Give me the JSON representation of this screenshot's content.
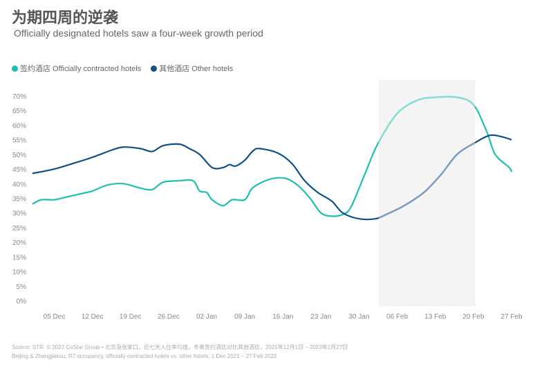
{
  "title": "为期四周的逆袭",
  "subtitle": "Officially designated hotels saw a four-week growth period",
  "source_line1": "Source: STR. © 2022 CoStar Group • 北京及张家口，近七天入住率均值，冬奥签约酒店对比其他酒店，2021年12月1日 – 2022年2月27日",
  "source_line2": "Beijing & Zhangjiakou, R7 occupancy, officially contracted hotels vs. other hotels, 1 Dec 2021 – 27 Feb 2022",
  "chart_data": {
    "type": "line",
    "title": "为期四周的逆袭",
    "xlabel": "",
    "ylabel": "",
    "ylim": [
      0,
      70
    ],
    "yticks": [
      "0%",
      "5%",
      "10%",
      "15%",
      "20%",
      "25%",
      "30%",
      "35%",
      "40%",
      "45%",
      "50%",
      "55%",
      "60%",
      "65%",
      "70%"
    ],
    "xticks": [
      {
        "day": 4,
        "label": "05 Dec"
      },
      {
        "day": 11,
        "label": "12 Dec"
      },
      {
        "day": 18,
        "label": "19 Dec"
      },
      {
        "day": 25,
        "label": "26 Dec"
      },
      {
        "day": 32,
        "label": "02 Jan"
      },
      {
        "day": 39,
        "label": "09 Jan"
      },
      {
        "day": 46,
        "label": "16 Jan"
      },
      {
        "day": 53,
        "label": "23 Jan"
      },
      {
        "day": 60,
        "label": "30 Jan"
      },
      {
        "day": 67,
        "label": "06 Feb"
      },
      {
        "day": 74,
        "label": "13 Feb"
      },
      {
        "day": 81,
        "label": "20 Feb"
      },
      {
        "day": 88,
        "label": "27 Feb"
      }
    ],
    "highlight_days": [
      63.6,
      81.3
    ],
    "series": [
      {
        "name": "签约酒店 Officially contracted hotels",
        "color": "#1DBFAF",
        "highlight_color": "#86DCD2",
        "x": [
          0,
          1.6,
          4,
          6.4,
          8.8,
          11,
          13.7,
          16.7,
          19.8,
          22,
          24,
          27,
          29.5,
          30.7,
          32,
          33,
          35,
          36.7,
          39,
          40.4,
          42.8,
          45,
          47,
          49,
          51,
          53,
          55,
          57,
          58.5,
          61,
          63.4,
          67,
          70.7,
          74,
          78,
          81,
          83.4,
          85,
          87.6,
          88
        ],
        "values": [
          33,
          34.5,
          34.5,
          35.5,
          36.5,
          37.5,
          39.5,
          40,
          38.5,
          38,
          40.5,
          41,
          41,
          37.5,
          37,
          34.5,
          32.5,
          34.5,
          34.5,
          38.5,
          41,
          42,
          41.5,
          39,
          35,
          30,
          28.9,
          29.5,
          32,
          43,
          53.5,
          64,
          68.5,
          69.5,
          69.5,
          67,
          58,
          50,
          45.5,
          44
        ]
      },
      {
        "name": "其他酒店 Other hotels",
        "color": "#0D4F86",
        "highlight_color": "#7E9DBE",
        "x": [
          0,
          4,
          7.6,
          11,
          14.6,
          16.7,
          19.8,
          22,
          24,
          27,
          28.8,
          30.7,
          33,
          35,
          36.2,
          37.3,
          39,
          40.4,
          41.6,
          45,
          47.6,
          50,
          52.4,
          55,
          57,
          60,
          63,
          65,
          68.3,
          71.9,
          75,
          78,
          81.3,
          84,
          86.3,
          88
        ],
        "values": [
          43.5,
          45,
          47,
          49,
          51.5,
          52.5,
          52,
          51,
          53,
          53.5,
          52,
          50,
          45.5,
          45.5,
          46.5,
          46,
          48,
          51,
          52,
          50.5,
          47,
          41,
          37,
          34,
          30,
          28,
          28,
          29.5,
          32.5,
          37,
          43,
          50,
          54,
          56.5,
          56,
          55
        ]
      }
    ]
  }
}
